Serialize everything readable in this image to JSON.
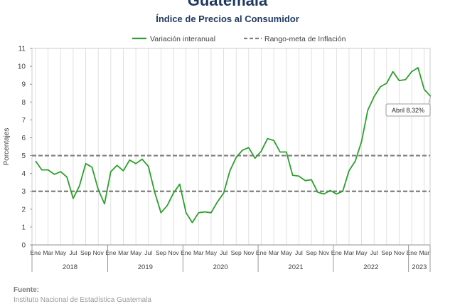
{
  "header": {
    "title": "Guatemala",
    "subtitle": "Índice de Precios al Consumidor"
  },
  "footer": {
    "label": "Fuente:",
    "source": "Instituto Nacional de Estadística Guatemala"
  },
  "colors": {
    "series": "#2ca02c",
    "band": "#7f7f7f",
    "title": "#1f3a5f",
    "grid": "#d9d9d9"
  },
  "chart_data": {
    "type": "line",
    "title": "Guatemala",
    "subtitle": "Índice de Precios al Consumidor",
    "ylabel": "Porcentajes",
    "ylim": [
      0,
      11
    ],
    "yticks": [
      0,
      1,
      2,
      3,
      4,
      5,
      6,
      7,
      8,
      9,
      10,
      11
    ],
    "grid": "vertical",
    "legend_position": "top",
    "month_labels": [
      "Ene",
      "Mar",
      "May",
      "Jul",
      "Sep",
      "Nov"
    ],
    "years": [
      "2018",
      "2019",
      "2020",
      "2021",
      "2022",
      "2023"
    ],
    "series": [
      {
        "name": "Variación interanual",
        "style": "solid",
        "start": "2018-01",
        "values": [
          4.7,
          4.2,
          4.2,
          3.95,
          4.1,
          3.8,
          2.6,
          3.3,
          4.55,
          4.35,
          3.1,
          2.3,
          4.1,
          4.45,
          4.15,
          4.75,
          4.55,
          4.8,
          4.4,
          2.95,
          1.8,
          2.2,
          2.9,
          3.4,
          1.8,
          1.25,
          1.8,
          1.85,
          1.8,
          2.4,
          2.9,
          4.15,
          4.9,
          5.3,
          5.45,
          4.85,
          5.25,
          5.95,
          5.85,
          5.2,
          5.2,
          3.9,
          3.85,
          3.6,
          3.65,
          2.95,
          2.85,
          3.05,
          2.85,
          3.0,
          4.15,
          4.7,
          5.8,
          7.55,
          8.3,
          8.85,
          9.05,
          9.7,
          9.2,
          9.25,
          9.7,
          9.92,
          8.7,
          8.32
        ]
      },
      {
        "name": "Rango-meta de Inflación",
        "style": "dashed",
        "band": [
          3,
          5
        ]
      }
    ],
    "annotation": {
      "text": "Abril 8.32%",
      "period": "2023-04",
      "value": 8.32
    }
  }
}
